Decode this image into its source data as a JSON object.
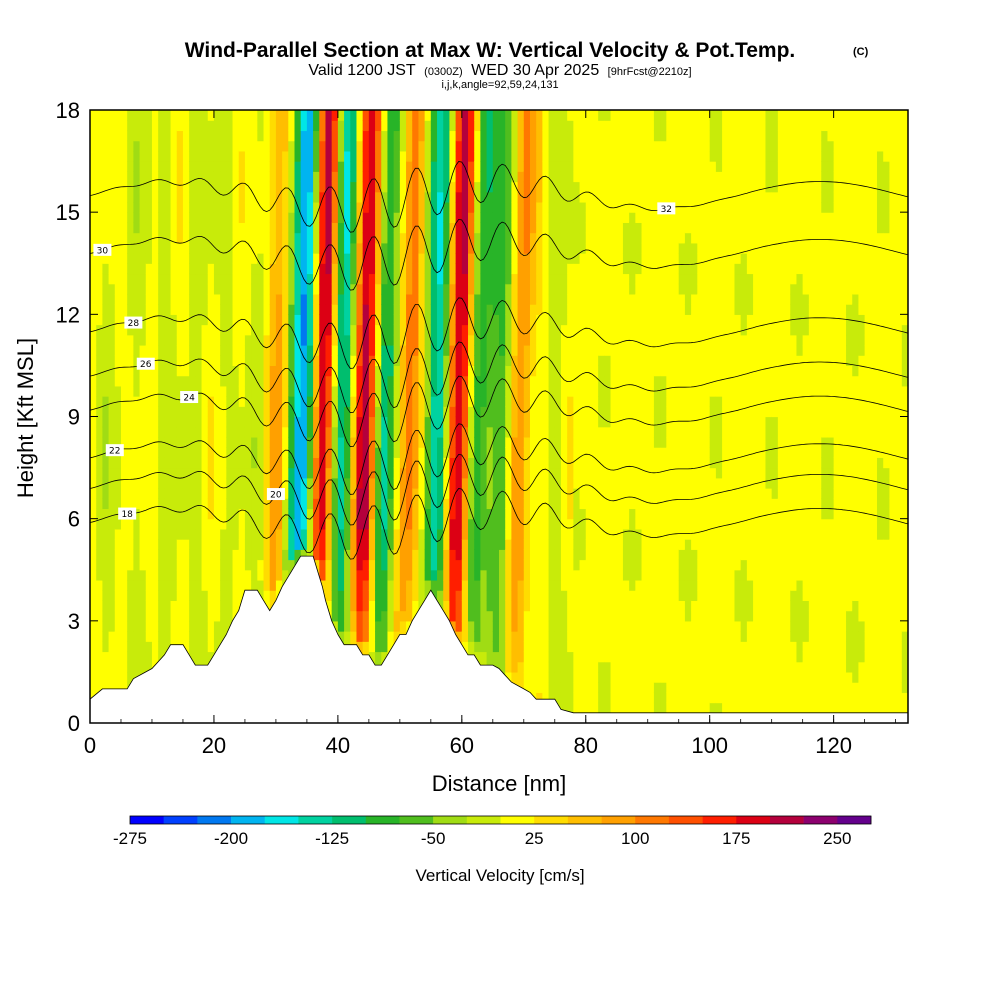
{
  "chart_data": {
    "type": "heatmap",
    "title": "Wind-Parallel Section at Max W: Vertical Velocity & Pot.Temp.",
    "title_mark": "(C)",
    "subtitle_valid": "Valid 1200 JST",
    "subtitle_utc": "(0300Z)",
    "subtitle_date": "WED 30 Apr 2025",
    "subtitle_fcst": "[9hrFcst@2210z]",
    "subtitle_index": "i,j,k,angle=92,59,24,131",
    "xlabel": "Distance [nm]",
    "ylabel": "Height [Kft MSL]",
    "xlim": [
      0,
      132
    ],
    "ylim": [
      0,
      18
    ],
    "x_ticks": [
      "0",
      "20",
      "40",
      "60",
      "80",
      "100",
      "120"
    ],
    "y_ticks": [
      "0",
      "3",
      "6",
      "9",
      "12",
      "15",
      "18"
    ],
    "colorbar": {
      "label": "Vertical Velocity [cm/s]",
      "min": -275,
      "max": 275,
      "tick_labels": [
        "-275",
        "-200",
        "-125",
        "-50",
        "25",
        "100",
        "175",
        "250"
      ],
      "colors": [
        "#0000ff",
        "#0040ff",
        "#0078f0",
        "#00b4f0",
        "#00e6e6",
        "#00d2a0",
        "#00be6e",
        "#28b428",
        "#50be1e",
        "#a0dc14",
        "#c8eb0a",
        "#ffff00",
        "#ffdc00",
        "#ffbe00",
        "#ffa000",
        "#ff7800",
        "#ff5000",
        "#ff1e00",
        "#dc0014",
        "#b4003c",
        "#8c006e",
        "#64008c"
      ]
    },
    "updraft_cores": [
      {
        "x": 37,
        "strength": 275
      },
      {
        "x": 44,
        "strength": 220
      },
      {
        "x": 59,
        "strength": 250
      },
      {
        "x": 51,
        "strength": 120
      },
      {
        "x": 69,
        "strength": 110
      },
      {
        "x": 30,
        "strength": 90
      },
      {
        "x": 82,
        "strength": 80
      }
    ],
    "downdraft_cores": [
      {
        "x": 34,
        "strength": -250
      },
      {
        "x": 40,
        "strength": -180
      },
      {
        "x": 47,
        "strength": -150
      },
      {
        "x": 56,
        "strength": -170
      },
      {
        "x": 62,
        "strength": -130
      },
      {
        "x": 66,
        "strength": -80
      }
    ],
    "terrain": [
      [
        0,
        0.7
      ],
      [
        2,
        1.0
      ],
      [
        6,
        1.0
      ],
      [
        7,
        1.3
      ],
      [
        10,
        1.6
      ],
      [
        12,
        2.0
      ],
      [
        13,
        2.3
      ],
      [
        15,
        2.3
      ],
      [
        16,
        2.0
      ],
      [
        17,
        1.7
      ],
      [
        19,
        1.7
      ],
      [
        20,
        2.0
      ],
      [
        21,
        2.3
      ],
      [
        22,
        2.6
      ],
      [
        23,
        3.0
      ],
      [
        24,
        3.3
      ],
      [
        24.5,
        3.6
      ],
      [
        25,
        3.9
      ],
      [
        27,
        3.9
      ],
      [
        28,
        3.6
      ],
      [
        29,
        3.3
      ],
      [
        30,
        3.6
      ],
      [
        31,
        4.0
      ],
      [
        32,
        4.3
      ],
      [
        33,
        4.6
      ],
      [
        34,
        4.9
      ],
      [
        36,
        4.9
      ],
      [
        37,
        4.3
      ],
      [
        37.5,
        4.0
      ],
      [
        38,
        3.6
      ],
      [
        39,
        3.0
      ],
      [
        40,
        2.6
      ],
      [
        41,
        2.3
      ],
      [
        43,
        2.3
      ],
      [
        44,
        2.0
      ],
      [
        45,
        2.0
      ],
      [
        46,
        1.7
      ],
      [
        47,
        1.7
      ],
      [
        48,
        2.0
      ],
      [
        49,
        2.3
      ],
      [
        50,
        2.6
      ],
      [
        51,
        2.6
      ],
      [
        52,
        3.0
      ],
      [
        53,
        3.3
      ],
      [
        54,
        3.6
      ],
      [
        55,
        3.9
      ],
      [
        56,
        3.6
      ],
      [
        57,
        3.3
      ],
      [
        58,
        3.0
      ],
      [
        59,
        2.6
      ],
      [
        60,
        2.3
      ],
      [
        61,
        2.0
      ],
      [
        62,
        2.0
      ],
      [
        63,
        1.7
      ],
      [
        65,
        1.7
      ],
      [
        66,
        1.6
      ],
      [
        67,
        1.4
      ],
      [
        68,
        1.2
      ],
      [
        70,
        1.0
      ],
      [
        71,
        0.9
      ],
      [
        72,
        0.7
      ],
      [
        75,
        0.7
      ],
      [
        76,
        0.4
      ],
      [
        78,
        0.3
      ],
      [
        132,
        0.3
      ]
    ],
    "theta_contours": [
      {
        "label": "18",
        "base": 5.9,
        "label_x": 6
      },
      {
        "label": "20",
        "base": 6.9,
        "label_x": 30
      },
      {
        "label": "22",
        "base": 7.8,
        "label_x": 4
      },
      {
        "label": "24",
        "base": 9.2,
        "label_x": 16
      },
      {
        "label": "26",
        "base": 10.2,
        "label_x": 9
      },
      {
        "label": "28",
        "base": 11.5,
        "label_x": 7
      },
      {
        "label": "30",
        "base": 13.8,
        "label_x": 2
      },
      {
        "label": "32",
        "base": 15.5,
        "label_x": 93
      }
    ]
  }
}
